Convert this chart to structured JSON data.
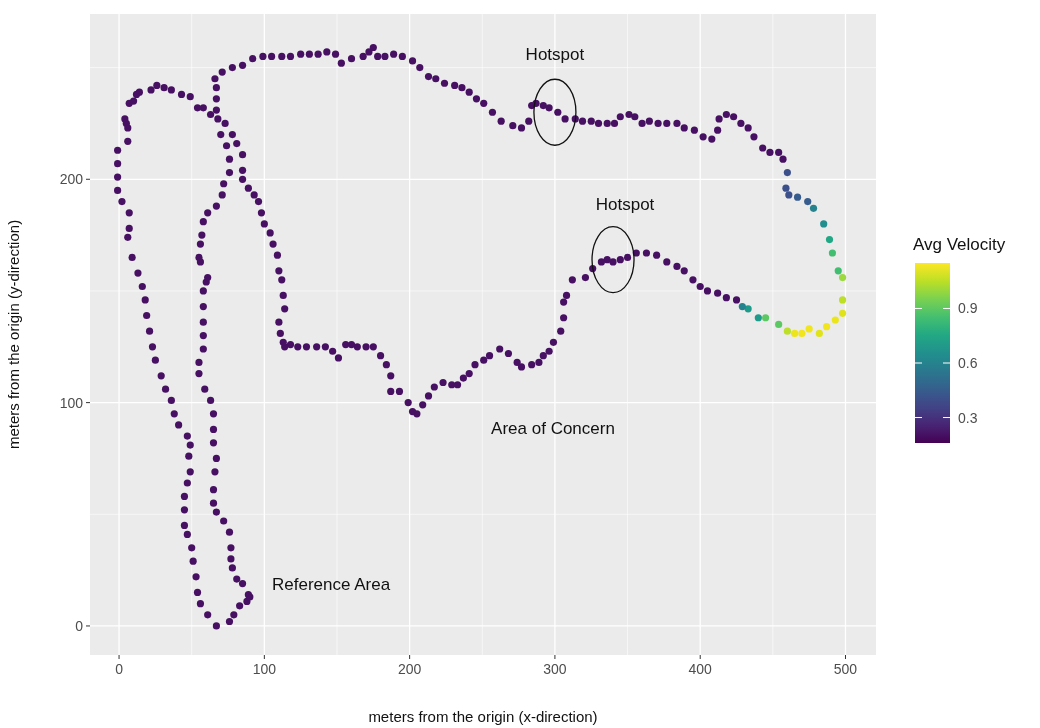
{
  "chart_data": {
    "type": "scatter",
    "xlabel": "meters from the origin (x-direction)",
    "ylabel": "meters from the origin (y-direction)",
    "clabel": "Avg Velocity",
    "xlim": [
      -20,
      521
    ],
    "xticks": [
      0,
      100,
      200,
      300,
      400,
      500
    ],
    "ylim": [
      -13,
      274
    ],
    "yticks": [
      0,
      100,
      200
    ],
    "clim": [
      0.16,
      1.15
    ],
    "cticks": [
      0.3,
      0.6,
      0.9
    ],
    "grid": true,
    "marker": "circle",
    "annotations": [
      {
        "text": "Hotspot",
        "x": 300,
        "y": 230
      },
      {
        "text": "Hotspot",
        "x": 340,
        "y": 164
      },
      "Area of Concern",
      "Reference Area"
    ],
    "x": [
      -1,
      -1,
      -1,
      -1,
      2,
      7,
      7,
      6,
      9,
      13,
      16,
      18,
      19,
      21,
      23,
      25,
      29,
      32,
      36,
      38,
      41,
      47,
      49,
      48,
      49,
      47,
      45,
      45,
      45,
      47,
      50,
      51,
      53,
      54,
      56,
      61,
      67,
      76,
      79,
      83,
      88,
      90,
      89,
      85,
      81,
      78,
      77,
      77,
      76,
      72,
      67,
      65,
      65,
      66,
      67,
      65,
      65,
      65,
      63,
      59,
      55,
      55,
      58,
      58,
      58,
      58,
      58,
      60,
      61,
      56,
      55,
      56,
      57,
      58,
      61,
      67,
      71,
      72,
      76,
      76,
      74,
      70,
      68,
      67,
      67,
      67,
      66,
      71,
      78,
      85,
      92,
      99,
      105,
      112,
      118,
      125,
      131,
      137,
      143,
      149,
      153,
      160,
      168,
      172,
      175,
      178,
      183,
      189,
      195,
      202,
      207,
      213,
      218,
      224,
      231,
      236,
      241,
      246,
      251,
      257,
      263,
      271,
      277,
      282,
      284,
      287,
      292,
      296,
      302,
      307,
      314,
      319,
      325,
      330,
      336,
      341,
      345,
      351,
      355,
      360,
      365,
      371,
      377,
      384,
      389,
      396,
      402,
      408,
      412,
      413,
      418,
      423,
      428,
      433,
      437,
      443,
      448,
      454,
      457,
      460,
      459,
      461,
      467,
      474,
      478,
      485,
      489,
      491,
      495,
      498,
      498,
      498,
      493,
      487,
      482,
      475,
      470,
      465,
      460,
      454,
      445,
      440,
      433,
      429,
      425,
      418,
      412,
      405,
      400,
      395,
      389,
      384,
      377,
      370,
      363,
      356,
      350,
      345,
      340,
      336,
      332,
      326,
      321,
      312,
      308,
      306,
      306,
      304,
      299,
      296,
      292,
      289,
      284,
      277,
      274,
      268,
      262,
      255,
      251,
      245,
      241,
      237,
      233,
      229,
      223,
      217,
      213,
      209,
      205,
      202,
      199,
      193,
      187,
      187,
      184,
      180,
      175,
      170,
      164,
      160,
      156,
      151,
      147,
      142,
      136,
      129,
      123,
      118,
      114,
      113,
      111,
      110,
      114,
      113,
      112,
      110,
      109,
      106,
      104,
      100,
      98,
      96,
      93,
      89,
      85,
      85,
      85,
      81,
      78,
      73,
      63,
      58,
      54,
      49,
      43,
      36,
      31,
      26,
      22,
      14,
      12,
      10,
      7,
      4,
      5,
      6,
      6
    ],
    "values": [
      213,
      207,
      201,
      195,
      190,
      185,
      178,
      174,
      165,
      158,
      152,
      146,
      139,
      132,
      125,
      119,
      112,
      106,
      101,
      95,
      90,
      85,
      81,
      76,
      69,
      64,
      58,
      52,
      45,
      41,
      35,
      29,
      22,
      15,
      10,
      5,
      0,
      2,
      5,
      9,
      11,
      13,
      14,
      19,
      21,
      26,
      30,
      35,
      42,
      47,
      51,
      55,
      61,
      69,
      75,
      82,
      88,
      95,
      101,
      106,
      113,
      118,
      124,
      130,
      136,
      143,
      150,
      154,
      156,
      163,
      165,
      171,
      175,
      181,
      185,
      188,
      193,
      198,
      203,
      209,
      215,
      220,
      227,
      231,
      236,
      241,
      245,
      248,
      250,
      251,
      254,
      255,
      255,
      255,
      255,
      256,
      256,
      256,
      257,
      256,
      252,
      254,
      255,
      257,
      259,
      255,
      255,
      256,
      255,
      253,
      250,
      246,
      245,
      243,
      242,
      241,
      239,
      236,
      234,
      230,
      226,
      224,
      223,
      226,
      233,
      234,
      233,
      232,
      230,
      227,
      227,
      226,
      226,
      225,
      225,
      225,
      228,
      229,
      228,
      225,
      226,
      225,
      225,
      225,
      223,
      222,
      219,
      218,
      222,
      227,
      229,
      228,
      225,
      223,
      219,
      214,
      212,
      212,
      209,
      203,
      196,
      193,
      192,
      190,
      187,
      180,
      173,
      167,
      159,
      156,
      146,
      140,
      137,
      134,
      131,
      133,
      131,
      131,
      132,
      135,
      138,
      138,
      142,
      143,
      146,
      147,
      149,
      150,
      152,
      155,
      159,
      161,
      163,
      166,
      167,
      167,
      165,
      164,
      163,
      164,
      163,
      160,
      156,
      155,
      148,
      145,
      138,
      132,
      127,
      123,
      121,
      118,
      117,
      116,
      118,
      122,
      124,
      121,
      119,
      117,
      113,
      111,
      108,
      108,
      109,
      107,
      103,
      99,
      95,
      96,
      100,
      105,
      105,
      112,
      117,
      121,
      125,
      125,
      125,
      126,
      126,
      120,
      123,
      125,
      125,
      125,
      125,
      126,
      125,
      127,
      131,
      136,
      142,
      148,
      155,
      159,
      166,
      171,
      176,
      180,
      185,
      190,
      193,
      196,
      200,
      204,
      211,
      216,
      220,
      225,
      229,
      232,
      232,
      237,
      238,
      240,
      241,
      242,
      240,
      239,
      238,
      235,
      234,
      227,
      225,
      223,
      217
    ],
    "cvalues": [
      0.2,
      0.2,
      0.2,
      0.2,
      0.2,
      0.2,
      0.2,
      0.2,
      0.2,
      0.2,
      0.2,
      0.2,
      0.2,
      0.2,
      0.2,
      0.2,
      0.2,
      0.2,
      0.2,
      0.2,
      0.2,
      0.2,
      0.2,
      0.2,
      0.2,
      0.2,
      0.2,
      0.2,
      0.2,
      0.2,
      0.2,
      0.2,
      0.2,
      0.2,
      0.2,
      0.2,
      0.2,
      0.2,
      0.2,
      0.2,
      0.2,
      0.2,
      0.2,
      0.2,
      0.2,
      0.2,
      0.2,
      0.2,
      0.2,
      0.2,
      0.2,
      0.2,
      0.2,
      0.2,
      0.2,
      0.2,
      0.2,
      0.2,
      0.2,
      0.2,
      0.2,
      0.2,
      0.2,
      0.2,
      0.2,
      0.2,
      0.2,
      0.2,
      0.2,
      0.2,
      0.2,
      0.2,
      0.2,
      0.2,
      0.2,
      0.2,
      0.2,
      0.2,
      0.2,
      0.2,
      0.2,
      0.2,
      0.2,
      0.2,
      0.2,
      0.2,
      0.2,
      0.2,
      0.2,
      0.2,
      0.2,
      0.2,
      0.2,
      0.2,
      0.2,
      0.2,
      0.2,
      0.2,
      0.2,
      0.2,
      0.2,
      0.2,
      0.2,
      0.2,
      0.2,
      0.2,
      0.2,
      0.2,
      0.2,
      0.2,
      0.2,
      0.2,
      0.2,
      0.2,
      0.2,
      0.2,
      0.2,
      0.2,
      0.2,
      0.2,
      0.2,
      0.2,
      0.2,
      0.2,
      0.2,
      0.2,
      0.2,
      0.2,
      0.2,
      0.2,
      0.2,
      0.2,
      0.2,
      0.2,
      0.2,
      0.2,
      0.2,
      0.2,
      0.2,
      0.2,
      0.2,
      0.2,
      0.2,
      0.2,
      0.2,
      0.2,
      0.2,
      0.2,
      0.2,
      0.2,
      0.2,
      0.2,
      0.2,
      0.2,
      0.2,
      0.2,
      0.2,
      0.2,
      0.2,
      0.4,
      0.4,
      0.4,
      0.45,
      0.45,
      0.6,
      0.65,
      0.75,
      0.85,
      0.85,
      1.0,
      1.05,
      1.1,
      1.12,
      1.13,
      1.1,
      1.13,
      1.13,
      1.12,
      1.05,
      0.9,
      0.9,
      0.7,
      0.7,
      0.6,
      0.2,
      0.2,
      0.2,
      0.2,
      0.2,
      0.2,
      0.2,
      0.2,
      0.2,
      0.2,
      0.2,
      0.2,
      0.2,
      0.2,
      0.2,
      0.2,
      0.2,
      0.2,
      0.2,
      0.2,
      0.2,
      0.2,
      0.2,
      0.2,
      0.2,
      0.2,
      0.2,
      0.2,
      0.2,
      0.2,
      0.2,
      0.2,
      0.2,
      0.2,
      0.2,
      0.2,
      0.2,
      0.2,
      0.2,
      0.2,
      0.2,
      0.2,
      0.2,
      0.2,
      0.2,
      0.2,
      0.2,
      0.2,
      0.2,
      0.2,
      0.2,
      0.2,
      0.2,
      0.2,
      0.2,
      0.2,
      0.2,
      0.2,
      0.2,
      0.2,
      0.2,
      0.2,
      0.2,
      0.2,
      0.2,
      0.2,
      0.2,
      0.2,
      0.2,
      0.2,
      0.2,
      0.2,
      0.2,
      0.2,
      0.2,
      0.2,
      0.2,
      0.2,
      0.2,
      0.2,
      0.2,
      0.2,
      0.2,
      0.2,
      0.2,
      0.2,
      0.2,
      0.2,
      0.2,
      0.2,
      0.2,
      0.2,
      0.2,
      0.2,
      0.2,
      0.2,
      0.2,
      0.2,
      0.2,
      0.2,
      0.2,
      0.2,
      0.2
    ]
  }
}
